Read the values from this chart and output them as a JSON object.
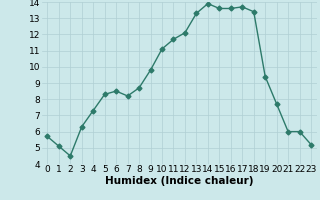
{
  "x": [
    0,
    1,
    2,
    3,
    4,
    5,
    6,
    7,
    8,
    9,
    10,
    11,
    12,
    13,
    14,
    15,
    16,
    17,
    18,
    19,
    20,
    21,
    22,
    23
  ],
  "y": [
    5.7,
    5.1,
    4.5,
    6.3,
    7.3,
    8.3,
    8.5,
    8.2,
    8.7,
    9.8,
    11.1,
    11.7,
    12.1,
    13.3,
    13.9,
    13.6,
    13.6,
    13.7,
    13.4,
    9.4,
    7.7,
    6.0,
    6.0,
    5.2
  ],
  "line_color": "#2d7a6a",
  "marker": "D",
  "marker_size": 2.5,
  "bg_color": "#cce8ea",
  "grid_color": "#b0cfd4",
  "xlabel": "Humidex (Indice chaleur)",
  "xlim": [
    -0.5,
    23.5
  ],
  "ylim": [
    4,
    14
  ],
  "yticks": [
    4,
    5,
    6,
    7,
    8,
    9,
    10,
    11,
    12,
    13,
    14
  ],
  "xtick_labels": [
    "0",
    "1",
    "2",
    "3",
    "4",
    "5",
    "6",
    "7",
    "8",
    "9",
    "10",
    "11",
    "12",
    "13",
    "14",
    "15",
    "16",
    "17",
    "18",
    "19",
    "20",
    "21",
    "22",
    "23"
  ],
  "tick_label_fontsize": 6.5,
  "xlabel_fontsize": 7.5,
  "line_width": 1.0
}
